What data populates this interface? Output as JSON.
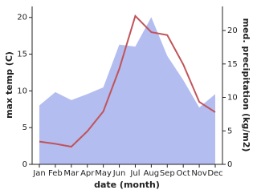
{
  "chart_data": {
    "type": "line",
    "x_label": "date (month)",
    "y_label": "max temp (C)",
    "y2_label": "med. precipitation (kg/m2)",
    "categories": [
      "Jan",
      "Feb",
      "Mar",
      "Apr",
      "May",
      "Jun",
      "Jul",
      "Aug",
      "Sep",
      "Oct",
      "Nov",
      "Dec"
    ],
    "series": [
      {
        "name": "precipitation",
        "type": "area",
        "axis": "y2",
        "color": "#b3bdf0",
        "values": [
          8.8,
          10.8,
          9.6,
          10.5,
          11.5,
          17.9,
          17.6,
          22.0,
          16.2,
          12.6,
          8.5,
          10.5
        ]
      },
      {
        "name": "max temp",
        "type": "line",
        "axis": "y",
        "color": "#c0545a",
        "values": [
          3.1,
          2.8,
          2.4,
          4.5,
          7.2,
          13.0,
          20.2,
          18.0,
          17.6,
          13.6,
          8.5,
          7.1
        ]
      }
    ],
    "ylim": [
      0,
      21.5
    ],
    "yticks": [
      0,
      5,
      10,
      15,
      20
    ],
    "y2lim": [
      0,
      23.6
    ],
    "y2ticks": [
      0,
      5,
      10,
      15,
      20
    ]
  }
}
